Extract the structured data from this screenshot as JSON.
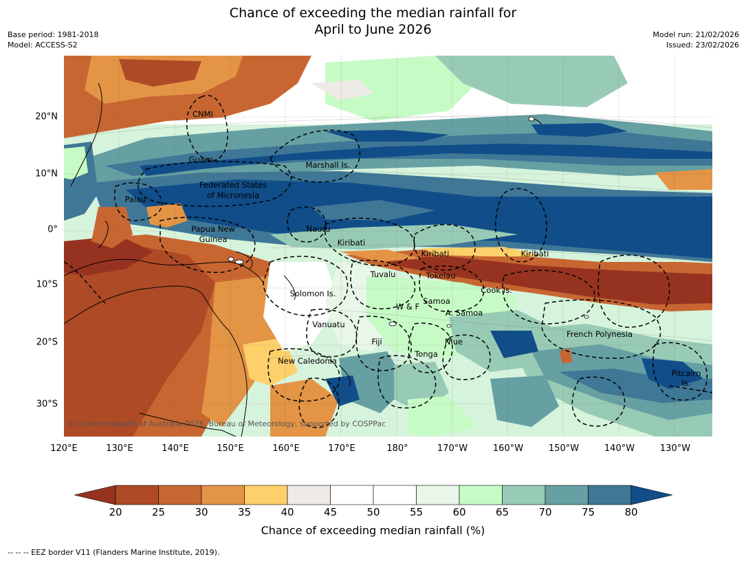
{
  "title_line1": "Chance of exceeding the median rainfall for",
  "title_line2": "April to June 2026",
  "meta": {
    "base_period": "Base period: 1981-2018",
    "model": "Model: ACCESS-S2",
    "model_run": "Model run: 21/02/2026",
    "issued": "Issued: 23/02/2026"
  },
  "lon_ticks": [
    "120°E",
    "130°E",
    "140°E",
    "150°E",
    "160°E",
    "170°E",
    "180°",
    "170°W",
    "160°W",
    "150°W",
    "140°W",
    "130°W"
  ],
  "lat_ticks": [
    "20°N",
    "10°N",
    "0°",
    "10°S",
    "20°S",
    "30°S"
  ],
  "labels": {
    "cnmi": "CNMI",
    "guam": "Guam",
    "marshall": "Marshall Is.",
    "fsm1": "Federated States",
    "fsm2": "of Micronesia",
    "palau": "Palau",
    "png1": "Papua New",
    "png2": "Guinea",
    "nauru": "Nauru",
    "kiribati_w": "Kiribati",
    "kiribati_c": "Kiribati",
    "kiribati_e": "Kiribati",
    "tuvalu": "Tuvalu",
    "tokelau": "Tokelau",
    "cook": "Cook Is.",
    "solomon": "Solomon Is.",
    "wf": "W & F",
    "samoa": "Samoa",
    "asamoa": "A. Samoa",
    "vanuatu": "Vanuatu",
    "fiji": "Fiji",
    "niue": "Niue",
    "tonga": "Tonga",
    "french_polynesia": "French Polynesia",
    "new_caledonia": "New Caledonia",
    "pitcairn1": "Pitcairn",
    "pitcairn2": "Is."
  },
  "copyright": "© Commonwealth of Australia 2026, Bureau of Meteorology, supported by COSPPac",
  "colorbar": {
    "label": "Chance of exceeding median rainfall (%)",
    "ticks": [
      "20",
      "25",
      "30",
      "35",
      "40",
      "45",
      "50",
      "55",
      "60",
      "65",
      "70",
      "75",
      "80"
    ],
    "colors": [
      "#963320",
      "#ae4a26",
      "#c86632",
      "#e39445",
      "#fdd06b",
      "#eeeae6",
      "#ffffff",
      "#ffffff",
      "#e8f7e8",
      "#c6fbc6",
      "#98cbb5",
      "#66a0a3",
      "#3f7796",
      "#104d89"
    ]
  },
  "footnote": "--  --  -- EEZ border V11 (Flanders Marine Institute, 2019)."
}
